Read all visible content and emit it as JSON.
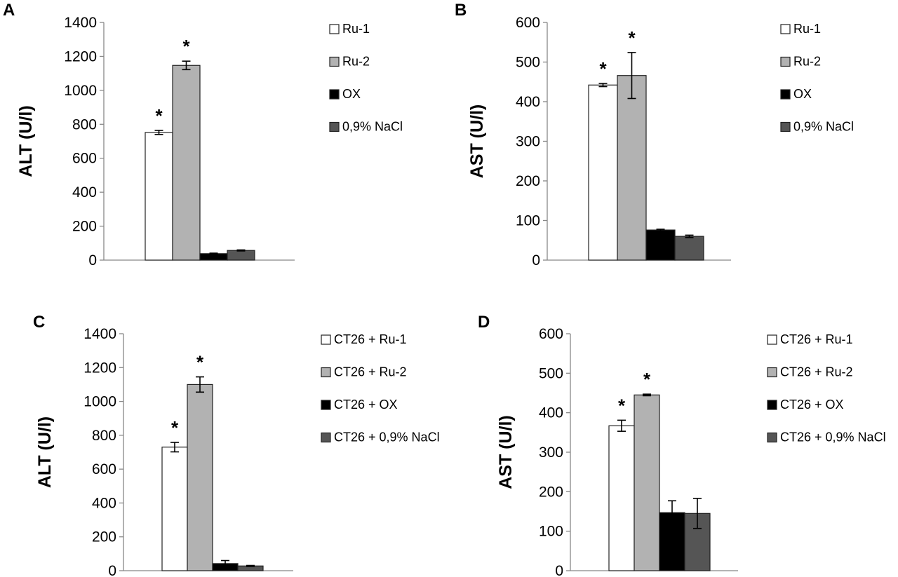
{
  "figure": {
    "panels": [
      "A",
      "B",
      "C",
      "D"
    ]
  },
  "chart_data": [
    {
      "type": "bar",
      "panel": "A",
      "title": "",
      "xlabel": "",
      "ylabel": "ALT (U/l)",
      "ylim": [
        0,
        1400
      ],
      "yticks": [
        0,
        200,
        400,
        600,
        800,
        1000,
        1200,
        1400
      ],
      "grid": false,
      "legend_position": "right",
      "series": [
        {
          "name": "Ru-1",
          "value": 752,
          "error": 12,
          "significant": true,
          "color": "#ffffff"
        },
        {
          "name": "Ru-2",
          "value": 1147,
          "error": 25,
          "significant": true,
          "color": "#b2b2b2"
        },
        {
          "name": "OX",
          "value": 38,
          "error": 3,
          "significant": false,
          "color": "#000000"
        },
        {
          "name": "0,9% NaCl",
          "value": 57,
          "error": 3,
          "significant": false,
          "color": "#555555"
        }
      ],
      "annotations": [
        "*",
        "*"
      ]
    },
    {
      "type": "bar",
      "panel": "B",
      "title": "",
      "xlabel": "",
      "ylabel": "AST (U/l)",
      "ylim": [
        0,
        600
      ],
      "yticks": [
        0,
        100,
        200,
        300,
        400,
        500,
        600
      ],
      "grid": false,
      "legend_position": "right",
      "series": [
        {
          "name": "Ru-1",
          "value": 442,
          "error": 4,
          "significant": true,
          "color": "#ffffff"
        },
        {
          "name": "Ru-2",
          "value": 466,
          "error": 58,
          "significant": true,
          "color": "#b2b2b2"
        },
        {
          "name": "OX",
          "value": 76,
          "error": 2,
          "significant": false,
          "color": "#000000"
        },
        {
          "name": "0,9% NaCl",
          "value": 60,
          "error": 3,
          "significant": false,
          "color": "#555555"
        }
      ],
      "annotations": [
        "*",
        "*"
      ]
    },
    {
      "type": "bar",
      "panel": "C",
      "title": "",
      "xlabel": "",
      "ylabel": "ALT (U/l)",
      "ylim": [
        0,
        1400
      ],
      "yticks": [
        0,
        200,
        400,
        600,
        800,
        1000,
        1200,
        1400
      ],
      "grid": false,
      "legend_position": "right",
      "series": [
        {
          "name": "CT26 + Ru-1",
          "value": 730,
          "error": 28,
          "significant": true,
          "color": "#ffffff"
        },
        {
          "name": "CT26 + Ru-2",
          "value": 1100,
          "error": 45,
          "significant": true,
          "color": "#b2b2b2"
        },
        {
          "name": "CT26 + OX",
          "value": 42,
          "error": 18,
          "significant": false,
          "color": "#000000"
        },
        {
          "name": "CT26 + 0,9% NaCl",
          "value": 28,
          "error": 3,
          "significant": false,
          "color": "#555555"
        }
      ],
      "annotations": [
        "*",
        "*"
      ]
    },
    {
      "type": "bar",
      "panel": "D",
      "title": "",
      "xlabel": "",
      "ylabel": "AST (U/l)",
      "ylim": [
        0,
        600
      ],
      "yticks": [
        0,
        100,
        200,
        300,
        400,
        500,
        600
      ],
      "grid": false,
      "legend_position": "right",
      "series": [
        {
          "name": "CT26 + Ru-1",
          "value": 367,
          "error": 14,
          "significant": true,
          "color": "#ffffff"
        },
        {
          "name": "CT26 + Ru-2",
          "value": 445,
          "error": 2,
          "significant": true,
          "color": "#b2b2b2"
        },
        {
          "name": "CT26 + OX",
          "value": 147,
          "error": 30,
          "significant": false,
          "color": "#000000"
        },
        {
          "name": "CT26 + 0,9% NaCl",
          "value": 145,
          "error": 38,
          "significant": false,
          "color": "#555555"
        }
      ],
      "annotations": [
        "*",
        "*"
      ]
    }
  ]
}
